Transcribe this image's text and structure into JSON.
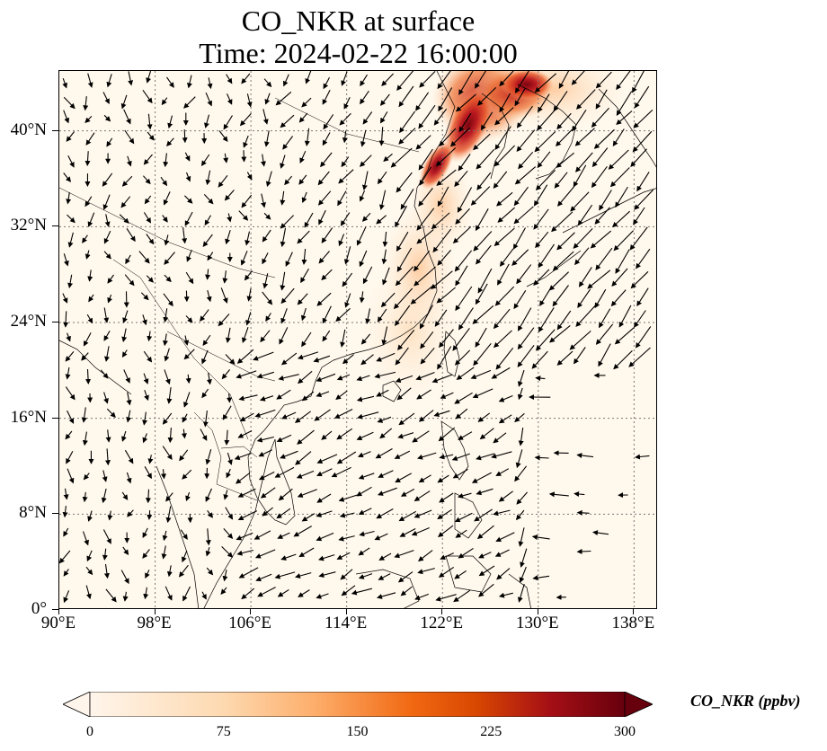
{
  "title": {
    "line1": "CO_NKR at surface",
    "line2": "Time: 2024-02-22 16:00:00"
  },
  "map": {
    "lon_range": [
      90,
      140
    ],
    "lat_range": [
      0,
      45
    ],
    "x_ticks": [
      "90°E",
      "98°E",
      "106°E",
      "114°E",
      "122°E",
      "130°E",
      "138°E"
    ],
    "x_tick_values": [
      90,
      98,
      106,
      114,
      122,
      130,
      138
    ],
    "y_ticks": [
      "0°",
      "8°N",
      "16°N",
      "24°N",
      "32°N",
      "40°N"
    ],
    "y_tick_values": [
      0,
      8,
      16,
      24,
      32,
      40
    ],
    "gridlines": true,
    "features": [
      "coastlines",
      "country-borders",
      "wind-vectors",
      "co-concentration-field"
    ]
  },
  "colorbar": {
    "title": "CO_NKR (ppbv)",
    "tick_labels": [
      "0",
      "75",
      "150",
      "225",
      "300"
    ],
    "tick_values": [
      0,
      75,
      150,
      225,
      300
    ],
    "range": [
      0,
      300
    ],
    "colormap": [
      "#fff5eb",
      "#fdd9b0",
      "#fdae6b",
      "#f16913",
      "#d94801",
      "#a50f15",
      "#67000d"
    ],
    "extend": "both"
  },
  "colors": {
    "land_outline": "#000000",
    "gridline": "#777777",
    "arrow": "#000000"
  }
}
